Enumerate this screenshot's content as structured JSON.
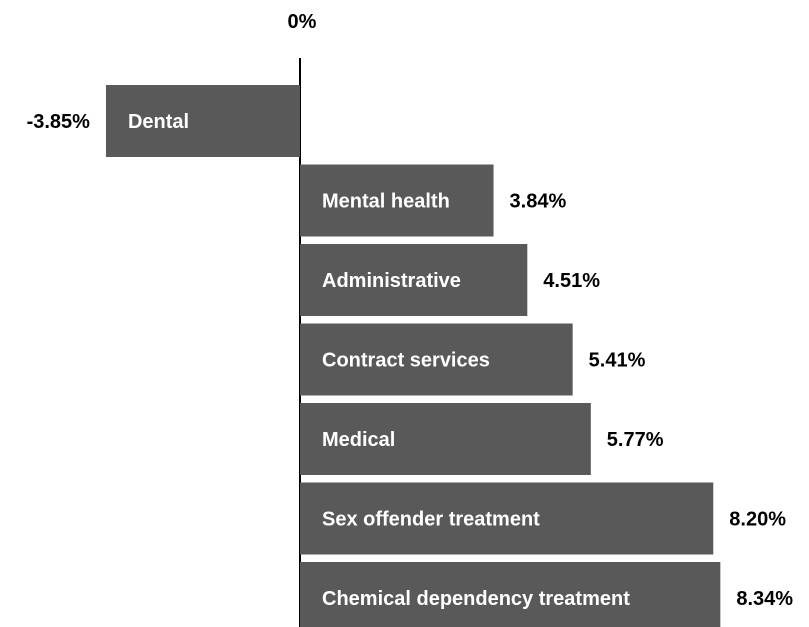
{
  "chart_data": {
    "type": "bar",
    "orientation": "horizontal",
    "categories": [
      "Dental",
      "Mental health",
      "Administrative",
      "Contract services",
      "Medical",
      "Sex offender treatment",
      "Chemical dependency treatment"
    ],
    "values": [
      -3.85,
      3.84,
      4.51,
      5.41,
      5.77,
      8.2,
      8.34
    ],
    "value_labels": [
      "-3.85%",
      "3.84%",
      "4.51%",
      "5.41%",
      "5.77%",
      "8.20%",
      "8.34%"
    ],
    "axis_label": "0%",
    "xlim": [
      -4.5,
      8.6
    ],
    "grid": false,
    "legend": "none"
  },
  "colors": {
    "bar": "#595959",
    "bar_text": "#ffffff",
    "value_text": "#000000",
    "axis": "#000000"
  }
}
